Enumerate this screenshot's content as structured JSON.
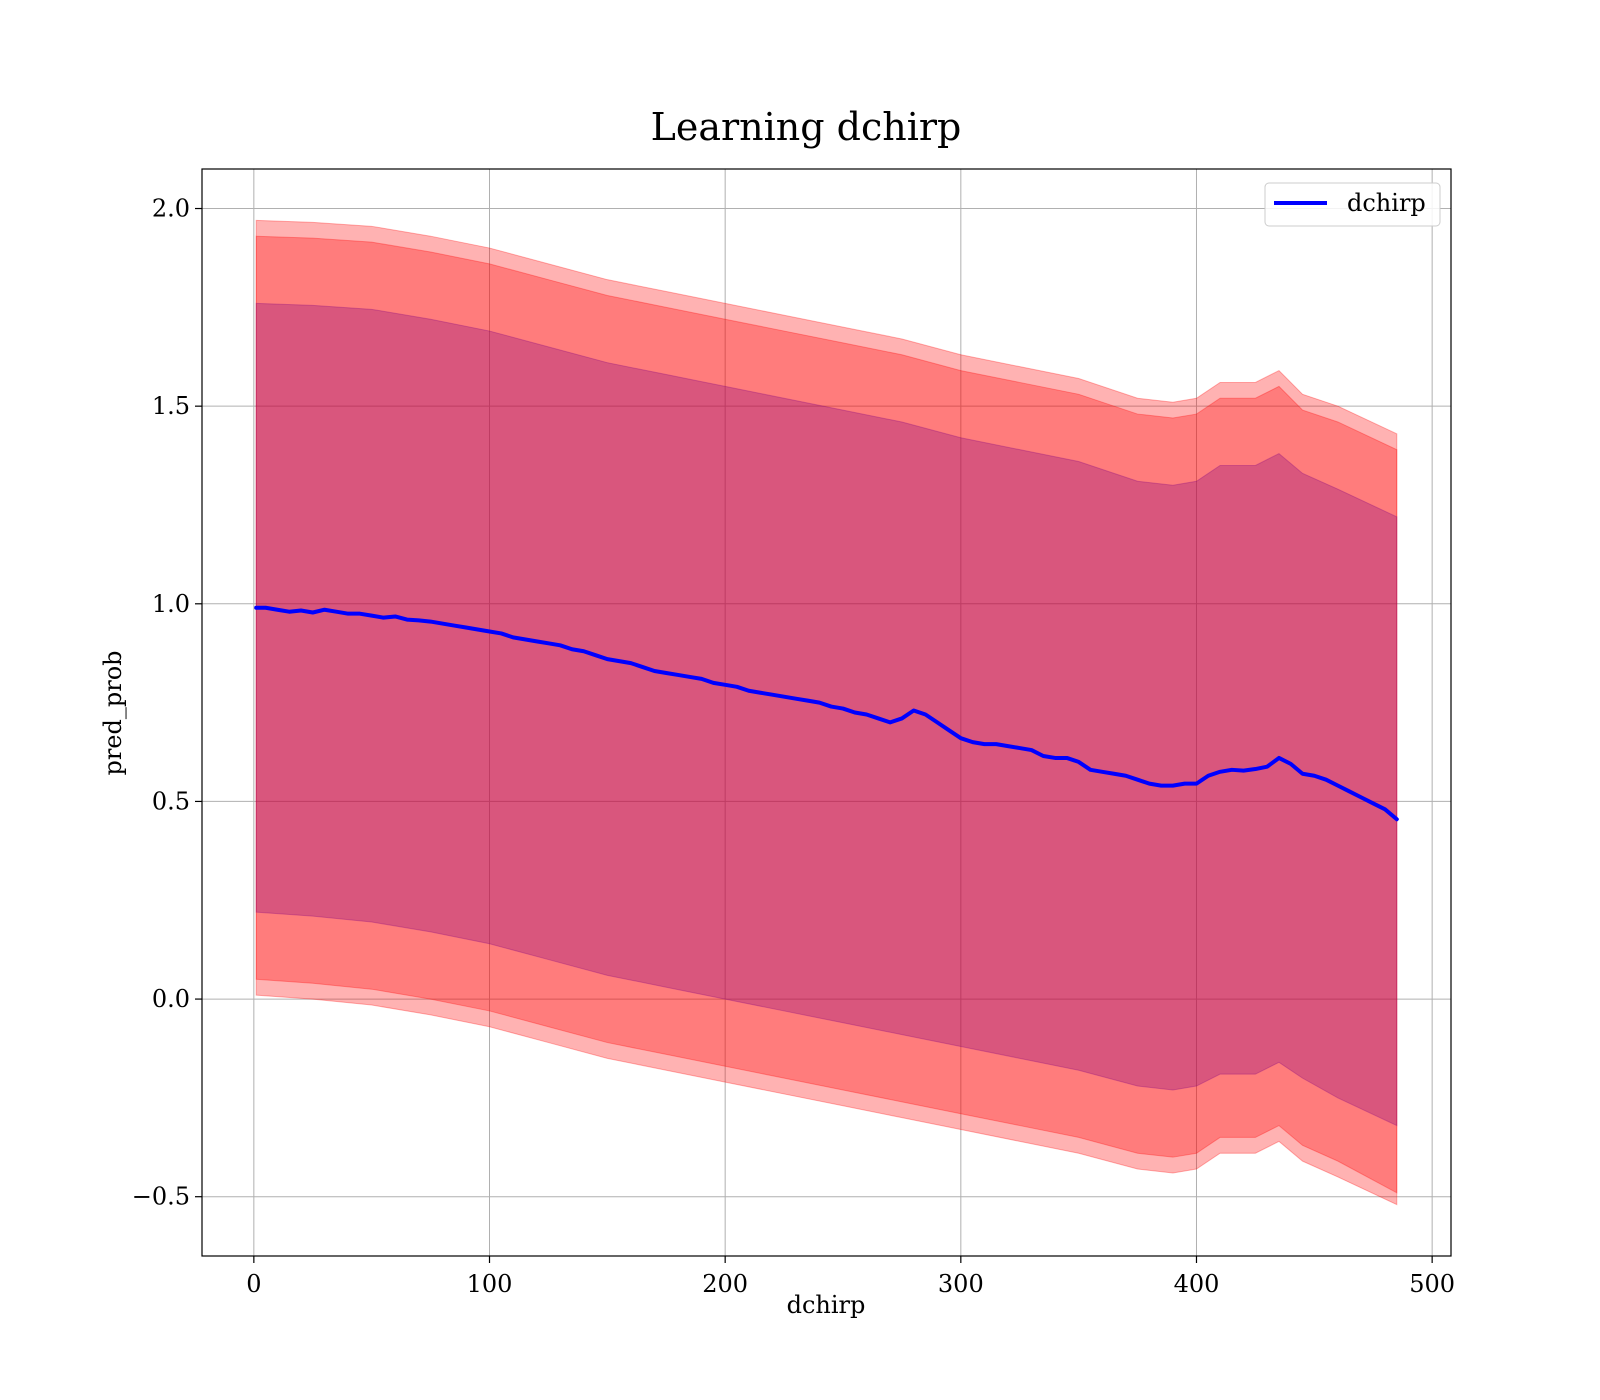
{
  "chart_data": {
    "type": "line",
    "title": "Learning dchirp",
    "xlabel": "dchirp",
    "ylabel": "pred_prob",
    "xlim": [
      -22,
      508
    ],
    "ylim": [
      -0.65,
      2.1
    ],
    "xticks": [
      0,
      100,
      200,
      300,
      400,
      500
    ],
    "yticks": [
      -0.5,
      0.0,
      0.5,
      1.0,
      1.5,
      2.0
    ],
    "xtick_labels": [
      "0",
      "100",
      "200",
      "300",
      "400",
      "500"
    ],
    "ytick_labels": [
      "−0.5",
      "0.0",
      "0.5",
      "1.0",
      "1.5",
      "2.0"
    ],
    "grid": true,
    "legend": {
      "placement": "top-right",
      "entries": [
        "dchirp"
      ]
    },
    "series": [
      {
        "name": "dchirp",
        "color": "#0000ff",
        "x": [
          1,
          5,
          10,
          15,
          20,
          25,
          30,
          35,
          40,
          45,
          50,
          55,
          60,
          65,
          70,
          75,
          80,
          85,
          90,
          95,
          100,
          105,
          110,
          115,
          120,
          125,
          130,
          135,
          140,
          145,
          150,
          155,
          160,
          165,
          170,
          175,
          180,
          185,
          190,
          195,
          200,
          205,
          210,
          215,
          220,
          225,
          230,
          235,
          240,
          245,
          250,
          255,
          260,
          265,
          270,
          275,
          280,
          285,
          290,
          295,
          300,
          305,
          310,
          315,
          320,
          325,
          330,
          335,
          340,
          345,
          350,
          355,
          360,
          365,
          370,
          375,
          380,
          385,
          390,
          395,
          400,
          405,
          410,
          415,
          420,
          425,
          430,
          435,
          440,
          445,
          450,
          455,
          460,
          465,
          470,
          475,
          480,
          485
        ],
        "y": [
          0.99,
          0.99,
          0.985,
          0.98,
          0.983,
          0.978,
          0.985,
          0.98,
          0.975,
          0.975,
          0.97,
          0.965,
          0.968,
          0.96,
          0.958,
          0.955,
          0.95,
          0.945,
          0.94,
          0.935,
          0.93,
          0.925,
          0.915,
          0.91,
          0.905,
          0.9,
          0.895,
          0.885,
          0.88,
          0.87,
          0.86,
          0.855,
          0.85,
          0.84,
          0.83,
          0.825,
          0.82,
          0.815,
          0.81,
          0.8,
          0.795,
          0.79,
          0.78,
          0.775,
          0.77,
          0.765,
          0.76,
          0.755,
          0.75,
          0.74,
          0.735,
          0.725,
          0.72,
          0.71,
          0.7,
          0.71,
          0.73,
          0.72,
          0.7,
          0.68,
          0.66,
          0.65,
          0.645,
          0.645,
          0.64,
          0.635,
          0.63,
          0.615,
          0.61,
          0.61,
          0.6,
          0.58,
          0.575,
          0.57,
          0.565,
          0.555,
          0.545,
          0.54,
          0.54,
          0.545,
          0.545,
          0.565,
          0.575,
          0.58,
          0.578,
          0.582,
          0.588,
          0.61,
          0.595,
          0.57,
          0.565,
          0.555,
          0.54,
          0.525,
          0.51,
          0.495,
          0.48,
          0.455
        ]
      }
    ],
    "bands": [
      {
        "color": "#ff0000",
        "opacity": 0.3,
        "x": [
          1,
          25,
          50,
          75,
          100,
          125,
          150,
          175,
          200,
          225,
          250,
          275,
          300,
          325,
          350,
          375,
          390,
          400,
          410,
          425,
          435,
          445,
          460,
          485
        ],
        "upper": [
          1.97,
          1.965,
          1.955,
          1.93,
          1.9,
          1.86,
          1.82,
          1.79,
          1.76,
          1.73,
          1.7,
          1.67,
          1.63,
          1.6,
          1.57,
          1.52,
          1.51,
          1.52,
          1.56,
          1.56,
          1.59,
          1.53,
          1.5,
          1.43
        ],
        "lower": [
          0.01,
          0.0,
          -0.015,
          -0.04,
          -0.07,
          -0.11,
          -0.15,
          -0.18,
          -0.21,
          -0.24,
          -0.27,
          -0.3,
          -0.33,
          -0.36,
          -0.39,
          -0.43,
          -0.44,
          -0.43,
          -0.39,
          -0.39,
          -0.36,
          -0.41,
          -0.45,
          -0.52
        ]
      },
      {
        "color": "#ff0000",
        "opacity": 0.3,
        "x": [
          1,
          25,
          50,
          75,
          100,
          125,
          150,
          175,
          200,
          225,
          250,
          275,
          300,
          325,
          350,
          375,
          390,
          400,
          410,
          425,
          435,
          445,
          460,
          485
        ],
        "upper": [
          1.93,
          1.925,
          1.915,
          1.89,
          1.86,
          1.82,
          1.78,
          1.75,
          1.72,
          1.69,
          1.66,
          1.63,
          1.59,
          1.56,
          1.53,
          1.48,
          1.47,
          1.48,
          1.52,
          1.52,
          1.55,
          1.49,
          1.46,
          1.39
        ],
        "lower": [
          0.05,
          0.04,
          0.025,
          0.0,
          -0.03,
          -0.07,
          -0.11,
          -0.14,
          -0.17,
          -0.2,
          -0.23,
          -0.26,
          -0.29,
          -0.32,
          -0.35,
          -0.39,
          -0.4,
          -0.39,
          -0.35,
          -0.35,
          -0.32,
          -0.37,
          -0.41,
          -0.49
        ]
      },
      {
        "color": "#800080",
        "opacity": 0.3,
        "x": [
          1,
          25,
          50,
          75,
          100,
          125,
          150,
          175,
          200,
          225,
          250,
          275,
          300,
          325,
          350,
          375,
          390,
          400,
          410,
          425,
          435,
          445,
          460,
          485
        ],
        "upper": [
          1.76,
          1.755,
          1.745,
          1.72,
          1.69,
          1.65,
          1.61,
          1.58,
          1.55,
          1.52,
          1.49,
          1.46,
          1.42,
          1.39,
          1.36,
          1.31,
          1.3,
          1.31,
          1.35,
          1.35,
          1.38,
          1.33,
          1.29,
          1.22
        ],
        "lower": [
          0.22,
          0.21,
          0.195,
          0.17,
          0.14,
          0.1,
          0.06,
          0.03,
          0.0,
          -0.03,
          -0.06,
          -0.09,
          -0.12,
          -0.15,
          -0.18,
          -0.22,
          -0.23,
          -0.22,
          -0.19,
          -0.19,
          -0.16,
          -0.2,
          -0.25,
          -0.32
        ]
      }
    ]
  },
  "colors": {
    "line": "#0000ff",
    "grid": "#b0b0b0",
    "axes": "#000000"
  }
}
